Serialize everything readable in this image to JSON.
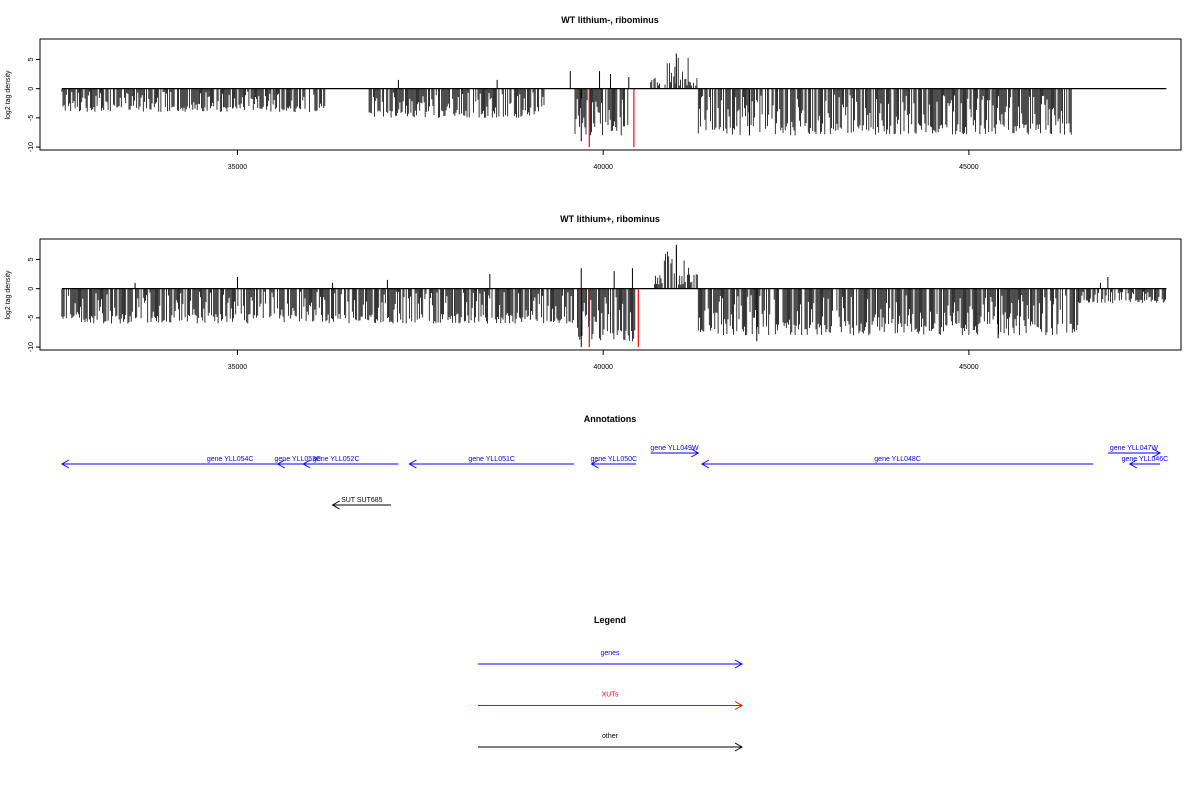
{
  "chart_data": [
    {
      "type": "bar",
      "title": "WT lithium-, ribominus",
      "xlabel": "",
      "ylabel": "log2 tag density",
      "xlim": [
        32300,
        47900
      ],
      "ylim": [
        -10.5,
        8.5
      ],
      "xticks": [
        35000,
        40000,
        45000
      ],
      "xtick_labels": [
        "35000",
        "40000",
        "45000"
      ],
      "yticks": [
        -10,
        -5,
        0,
        5
      ],
      "ytick_labels": [
        "-10",
        "-5",
        "0",
        "5"
      ],
      "baseline": {
        "x": [
          32600,
          47700
        ],
        "y": 0,
        "color": "#000000"
      },
      "highlight_lines": [
        {
          "x": 39810,
          "y": -10,
          "color": "#ff0000"
        },
        {
          "x": 40420,
          "y": -10,
          "color": "#ff0000"
        }
      ],
      "series": [
        {
          "color": "#000000",
          "segments": [
            {
              "x": [
                32600,
                36200
              ],
              "min": -4,
              "max": -0.5
            },
            {
              "x": [
                36800,
                39200
              ],
              "min": -5,
              "max": -0.5
            },
            {
              "x": [
                39600,
                40350
              ],
              "min": -8,
              "max": -1
            },
            {
              "x": [
                40650,
                41300
              ],
              "min": 0.5,
              "max": 5.5
            },
            {
              "x": [
                41300,
                46400
              ],
              "min": -8,
              "max": -1
            }
          ],
          "spikes": [
            {
              "x": 37200,
              "y": 1.5
            },
            {
              "x": 38550,
              "y": 1.5
            },
            {
              "x": 39550,
              "y": 3
            },
            {
              "x": 39950,
              "y": 3
            },
            {
              "x": 40100,
              "y": 2.5
            },
            {
              "x": 40350,
              "y": 2
            },
            {
              "x": 41000,
              "y": 6
            },
            {
              "x": 39700,
              "y": -9
            },
            {
              "x": 42000,
              "y": -8
            }
          ]
        }
      ]
    },
    {
      "type": "bar",
      "title": "WT lithium+, ribominus",
      "xlabel": "",
      "ylabel": "log2 tag density",
      "xlim": [
        32300,
        47900
      ],
      "ylim": [
        -10.5,
        8.5
      ],
      "xticks": [
        35000,
        40000,
        45000
      ],
      "xtick_labels": [
        "35000",
        "40000",
        "45000"
      ],
      "yticks": [
        -10,
        -5,
        0,
        5
      ],
      "ytick_labels": [
        "-10",
        "-5",
        "0",
        "5"
      ],
      "baseline": {
        "x": [
          32600,
          47700
        ],
        "y": 0,
        "color": "#000000"
      },
      "highlight_lines": [
        {
          "x": 39810,
          "y": -10,
          "color": "#ff0000"
        },
        {
          "x": 40480,
          "y": -10,
          "color": "#ff0000"
        }
      ],
      "series": [
        {
          "color": "#000000",
          "segments": [
            {
              "x": [
                32600,
                39600
              ],
              "min": -6,
              "max": -0.5
            },
            {
              "x": [
                39650,
                40450
              ],
              "min": -9,
              "max": -1
            },
            {
              "x": [
                40700,
                41300
              ],
              "min": 0.5,
              "max": 7
            },
            {
              "x": [
                41300,
                46500
              ],
              "min": -8,
              "max": -1
            },
            {
              "x": [
                46500,
                47700
              ],
              "min": -2.5,
              "max": -0.5
            }
          ],
          "spikes": [
            {
              "x": 33600,
              "y": 1
            },
            {
              "x": 35000,
              "y": 2
            },
            {
              "x": 36300,
              "y": 1
            },
            {
              "x": 37050,
              "y": 1.5
            },
            {
              "x": 38450,
              "y": 2.5
            },
            {
              "x": 39700,
              "y": 3.5
            },
            {
              "x": 40150,
              "y": 3
            },
            {
              "x": 40400,
              "y": 3.5
            },
            {
              "x": 41000,
              "y": 7.5
            },
            {
              "x": 46900,
              "y": 2
            },
            {
              "x": 46800,
              "y": 1
            },
            {
              "x": 39700,
              "y": -10
            },
            {
              "x": 42100,
              "y": -9
            },
            {
              "x": 45400,
              "y": -8.5
            }
          ]
        }
      ]
    }
  ],
  "annotations": {
    "title": "Annotations",
    "xlim": [
      32300,
      47900
    ],
    "features": [
      {
        "label": "gene YLL054C",
        "start": 37200,
        "end": 32600,
        "strand": "-",
        "row": 1,
        "color": "#0000ff"
      },
      {
        "label": "gene YLL053C",
        "start": 36100,
        "end": 35550,
        "strand": "-",
        "row": 1,
        "color": "#0000ff"
      },
      {
        "label": "gene YLL052C",
        "start": 36800,
        "end": 35900,
        "strand": "-",
        "row": 1,
        "color": "#0000ff"
      },
      {
        "label": "gene YLL051C",
        "start": 39600,
        "end": 37350,
        "strand": "-",
        "row": 1,
        "color": "#0000ff"
      },
      {
        "label": "gene YLL050C",
        "start": 40450,
        "end": 39840,
        "strand": "-",
        "row": 1,
        "color": "#0000ff"
      },
      {
        "label": "gene YLL049W",
        "start": 40650,
        "end": 41300,
        "strand": "+",
        "row": 0,
        "color": "#0000ff"
      },
      {
        "label": "gene YLL048C",
        "start": 46700,
        "end": 41350,
        "strand": "-",
        "row": 1,
        "color": "#0000ff"
      },
      {
        "label": "gene YLL047W",
        "start": 46900,
        "end": 47700,
        "strand": "+",
        "row": 0,
        "color": "#0000ff"
      },
      {
        "label": "gene YLL046C",
        "start": 48000,
        "end": 47200,
        "strand": "-",
        "row": 1,
        "color": "#0000ff"
      },
      {
        "label": "SUT SUT685",
        "start": 37100,
        "end": 36300,
        "strand": "-",
        "row": 3,
        "color": "#000000"
      }
    ]
  },
  "legend": {
    "title": "Legend",
    "items": [
      {
        "label": "genes",
        "color": "#0000ff"
      },
      {
        "label": "XUTs",
        "color": "#ff0000"
      },
      {
        "label": "other",
        "color": "#000000"
      }
    ]
  }
}
